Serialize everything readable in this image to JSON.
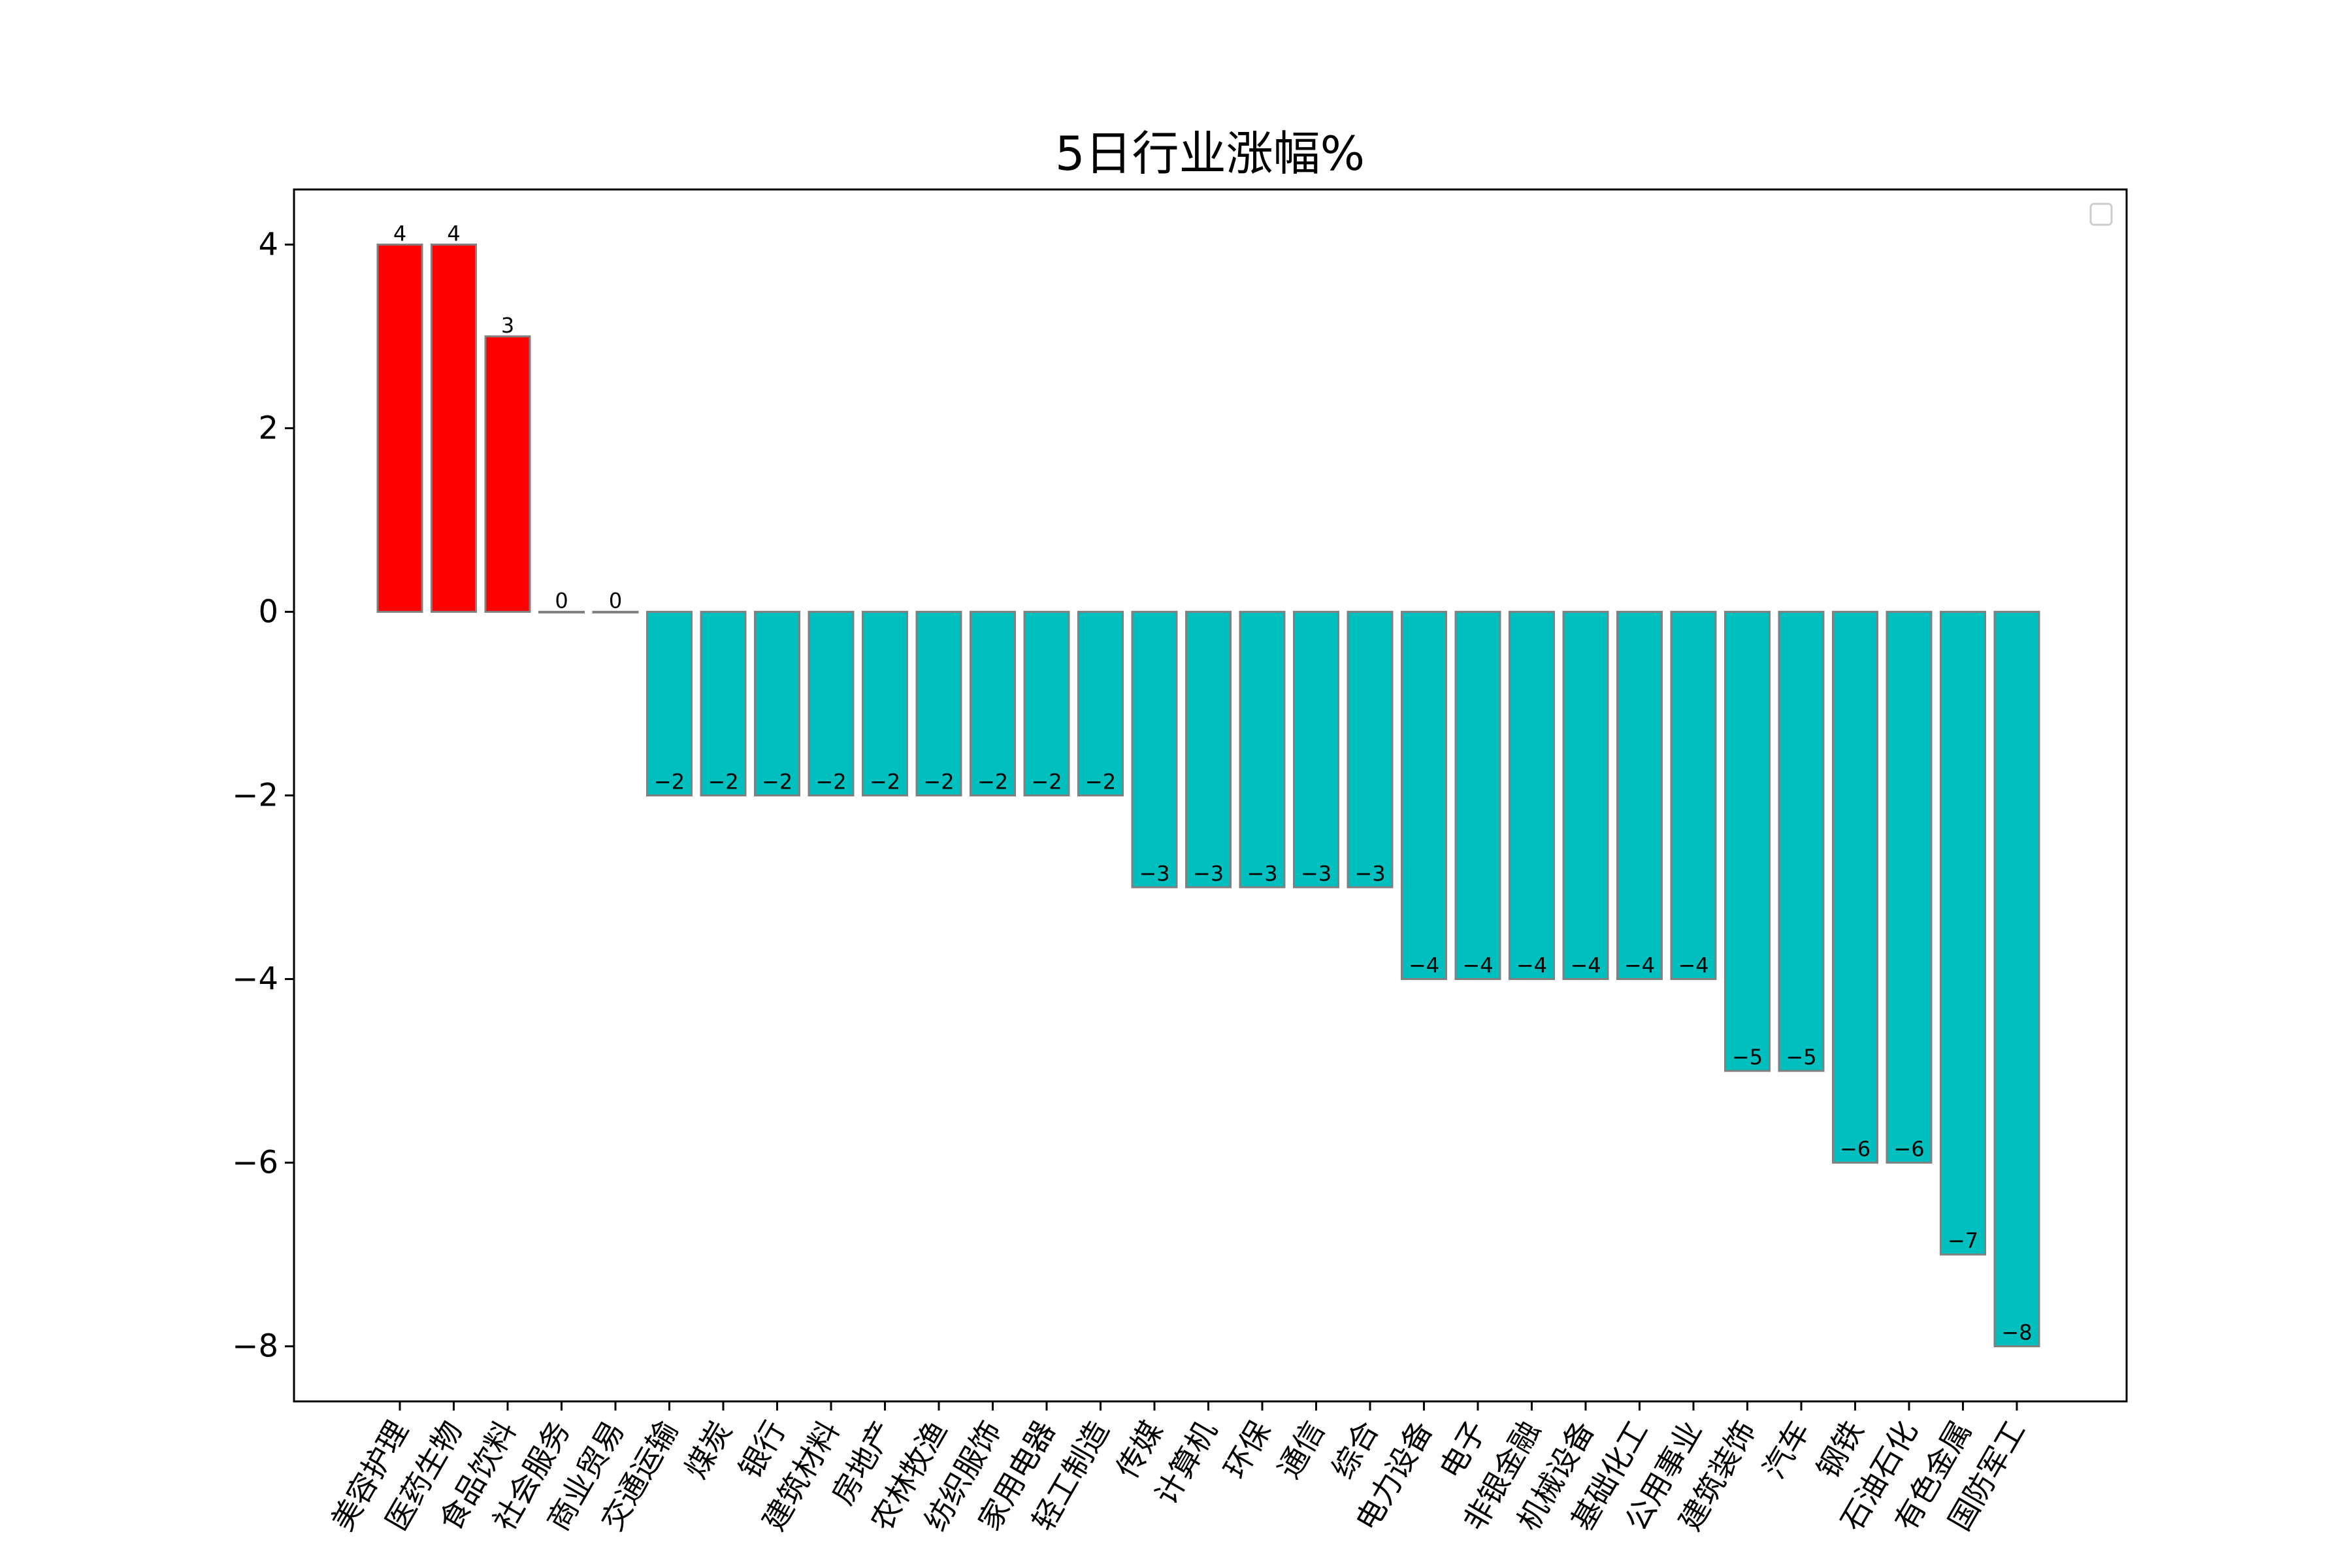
{
  "chart_data": {
    "type": "bar",
    "title": "5日行业涨幅%",
    "xlabel": "",
    "ylabel": "",
    "ylim": [
      -8.6,
      4.6
    ],
    "yticks": [
      4,
      2,
      0,
      -2,
      -4,
      -6,
      -8
    ],
    "ytick_labels": [
      "4",
      "2",
      "0",
      "−2",
      "−4",
      "−6",
      "−8"
    ],
    "grid": false,
    "legend": "top-right",
    "colors": {
      "positive": "#ff0000",
      "negative": "#00bfbf",
      "edge": "#808080",
      "axis": "#000000"
    },
    "categories": [
      "美容护理",
      "医药生物",
      "食品饮料",
      "社会服务",
      "商业贸易",
      "交通运输",
      "煤炭",
      "银行",
      "建筑材料",
      "房地产",
      "农林牧渔",
      "纺织服饰",
      "家用电器",
      "轻工制造",
      "传媒",
      "计算机",
      "环保",
      "通信",
      "综合",
      "电力设备",
      "电子",
      "非银金融",
      "机械设备",
      "基础化工",
      "公用事业",
      "建筑装饰",
      "汽车",
      "钢铁",
      "石油石化",
      "有色金属",
      "国防军工"
    ],
    "values": [
      4,
      4,
      3,
      0,
      0,
      -2,
      -2,
      -2,
      -2,
      -2,
      -2,
      -2,
      -2,
      -2,
      -3,
      -3,
      -3,
      -3,
      -3,
      -4,
      -4,
      -4,
      -4,
      -4,
      -4,
      -5,
      -5,
      -6,
      -6,
      -7,
      -8
    ],
    "data_labels": [
      "4",
      "4",
      "3",
      "0",
      "0",
      "−2",
      "−2",
      "−2",
      "−2",
      "−2",
      "−2",
      "−2",
      "−2",
      "−2",
      "−3",
      "−3",
      "−3",
      "−3",
      "−3",
      "−4",
      "−4",
      "−4",
      "−4",
      "−4",
      "−4",
      "−5",
      "−5",
      "−6",
      "−6",
      "−7",
      "−8"
    ]
  }
}
